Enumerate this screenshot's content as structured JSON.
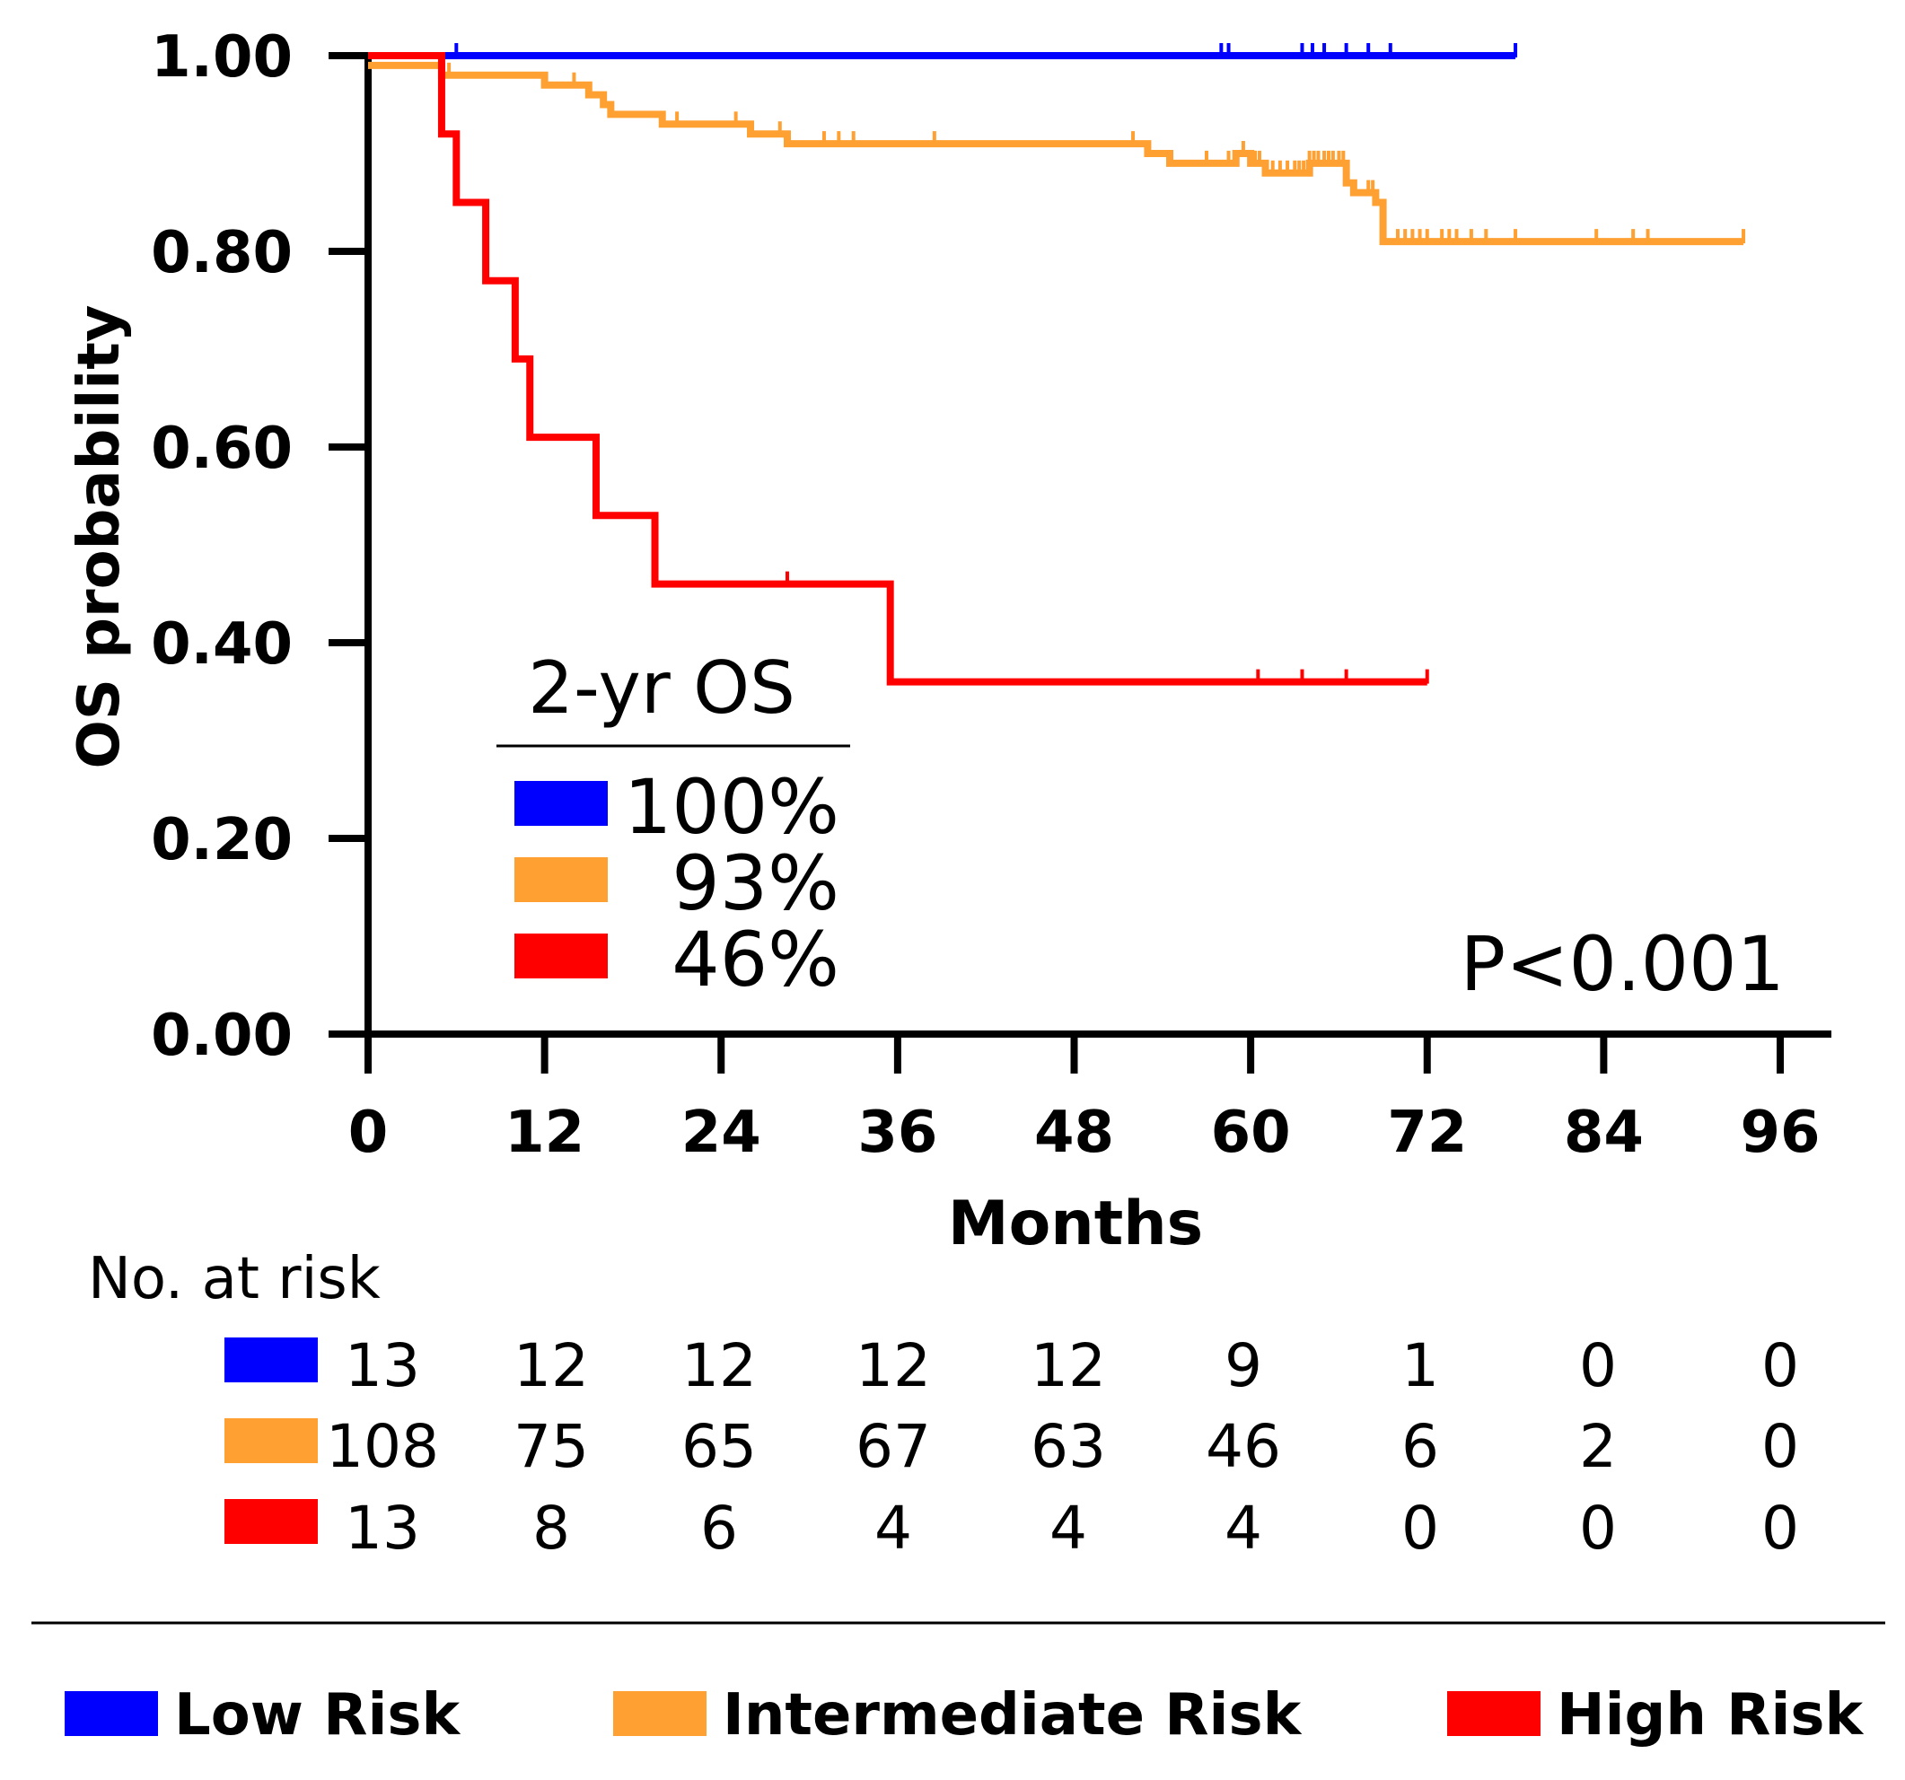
{
  "chart_data": {
    "type": "line",
    "subtype": "kaplan-meier",
    "xlabel": "Months",
    "ylabel": "OS probability",
    "xlim": [
      0,
      96
    ],
    "ylim": [
      0,
      1
    ],
    "x_ticks": [
      0,
      12,
      24,
      36,
      48,
      60,
      72,
      84,
      96
    ],
    "x_tick_labels": [
      "0",
      "12",
      "24",
      "36",
      "48",
      "60",
      "72",
      "84",
      "96"
    ],
    "y_ticks": [
      0,
      0.2,
      0.4,
      0.6,
      0.8,
      1.0
    ],
    "y_tick_labels": [
      "0.00",
      "0.20",
      "0.40",
      "0.60",
      "0.80",
      "1.00"
    ],
    "grid": false,
    "annotation": "P<0.001",
    "inset_legend": {
      "title": "2-yr OS",
      "entries": [
        {
          "series": "Low Risk",
          "value": "100%"
        },
        {
          "series": "Intermediate Risk",
          "value": "93%"
        },
        {
          "series": "High Risk",
          "value": "46%"
        }
      ]
    },
    "legend_placement": "bottom",
    "series": [
      {
        "name": "Low Risk",
        "color": "#0000ff",
        "steps": [
          [
            0,
            1.0
          ],
          [
            78,
            1.0
          ]
        ],
        "censor": [
          6,
          58,
          58.5,
          63.5,
          64.2,
          65,
          66.5,
          68,
          69.5,
          78
        ]
      },
      {
        "name": "Intermediate Risk",
        "color": "#ffa033",
        "steps": [
          [
            0,
            0.99
          ],
          [
            1,
            0.99
          ],
          [
            4,
            0.99
          ],
          [
            5,
            0.98
          ],
          [
            10,
            0.98
          ],
          [
            12,
            0.97
          ],
          [
            15,
            0.96
          ],
          [
            16,
            0.95
          ],
          [
            16.5,
            0.94
          ],
          [
            20,
            0.93
          ],
          [
            22,
            0.93
          ],
          [
            26,
            0.92
          ],
          [
            28.5,
            0.91
          ],
          [
            52,
            0.91
          ],
          [
            53,
            0.9
          ],
          [
            54.5,
            0.89
          ],
          [
            58.5,
            0.89
          ],
          [
            59,
            0.9
          ],
          [
            60,
            0.89
          ],
          [
            61,
            0.88
          ],
          [
            64,
            0.89
          ],
          [
            66.5,
            0.87
          ],
          [
            67,
            0.86
          ],
          [
            68.5,
            0.85
          ],
          [
            69,
            0.81
          ],
          [
            93.5,
            0.81
          ]
        ],
        "censor": [
          5.5,
          14,
          21,
          25,
          28,
          31,
          32,
          33,
          38.5,
          52,
          57,
          58.5,
          59.5,
          60,
          60.3,
          60.6,
          61.5,
          62,
          62.5,
          63,
          63.3,
          63.6,
          64,
          64.3,
          64.6,
          65,
          65.3,
          65.6,
          66,
          66.3,
          68,
          68.3,
          68.6,
          70,
          70.5,
          71,
          71.5,
          72,
          73,
          73.5,
          74,
          75,
          76,
          78,
          83.5,
          86,
          87,
          93.5
        ]
      },
      {
        "name": "High Risk",
        "color": "#ff0000",
        "steps": [
          [
            0,
            1.0
          ],
          [
            5,
            1.0
          ],
          [
            5,
            0.92
          ],
          [
            6,
            0.92
          ],
          [
            6,
            0.85
          ],
          [
            8,
            0.85
          ],
          [
            8,
            0.77
          ],
          [
            10,
            0.77
          ],
          [
            10,
            0.69
          ],
          [
            11,
            0.69
          ],
          [
            11,
            0.61
          ],
          [
            15.5,
            0.61
          ],
          [
            15.5,
            0.53
          ],
          [
            19.5,
            0.53
          ],
          [
            19.5,
            0.46
          ],
          [
            35.5,
            0.46
          ],
          [
            35.5,
            0.36
          ],
          [
            72,
            0.36
          ]
        ],
        "censor": [
          28.5,
          60.5,
          63.5,
          66.5,
          72
        ]
      }
    ],
    "risk_table": {
      "title": "No. at risk",
      "times": [
        0,
        12,
        24,
        36,
        48,
        60,
        72,
        84,
        96
      ],
      "rows": [
        {
          "series": "Low Risk",
          "values": [
            "13",
            "12",
            "12",
            "12",
            "12",
            "9",
            "1",
            "0",
            "0"
          ]
        },
        {
          "series": "Intermediate Risk",
          "values": [
            "108",
            "75",
            "65",
            "67",
            "63",
            "46",
            "6",
            "2",
            "0"
          ]
        },
        {
          "series": "High Risk",
          "values": [
            "13",
            "8",
            "6",
            "4",
            "4",
            "4",
            "0",
            "0",
            "0"
          ]
        }
      ]
    }
  }
}
